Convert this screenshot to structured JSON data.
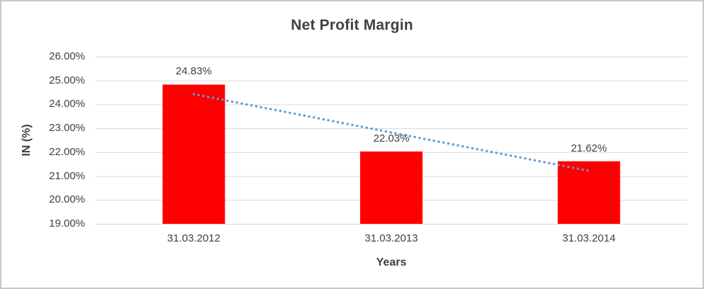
{
  "chart": {
    "title": "Net Profit Margin",
    "y_axis_title": "IN (%)",
    "x_axis_title": "Years"
  },
  "chart_data": {
    "type": "bar",
    "title": "Net Profit Margin",
    "xlabel": "Years",
    "ylabel": "IN (%)",
    "categories": [
      "31.03.2012",
      "31.03.2013",
      "31.03.2014"
    ],
    "values": [
      24.83,
      22.03,
      21.62
    ],
    "data_labels": [
      "24.83%",
      "22.03%",
      "21.62%"
    ],
    "ylim": [
      19,
      26
    ],
    "y_tick_step": 1,
    "y_tick_labels": [
      "19.00%",
      "20.00%",
      "21.00%",
      "22.00%",
      "23.00%",
      "24.00%",
      "25.00%",
      "26.00%"
    ],
    "grid": true,
    "legend": false,
    "bar_color": "#ff0000",
    "gridline_color": "#d9d9d9",
    "text_color": "#404040",
    "trendline": {
      "type": "linear",
      "style": "dotted",
      "color": "#5b9bd5",
      "start_value": 24.43,
      "end_value": 21.22
    }
  }
}
